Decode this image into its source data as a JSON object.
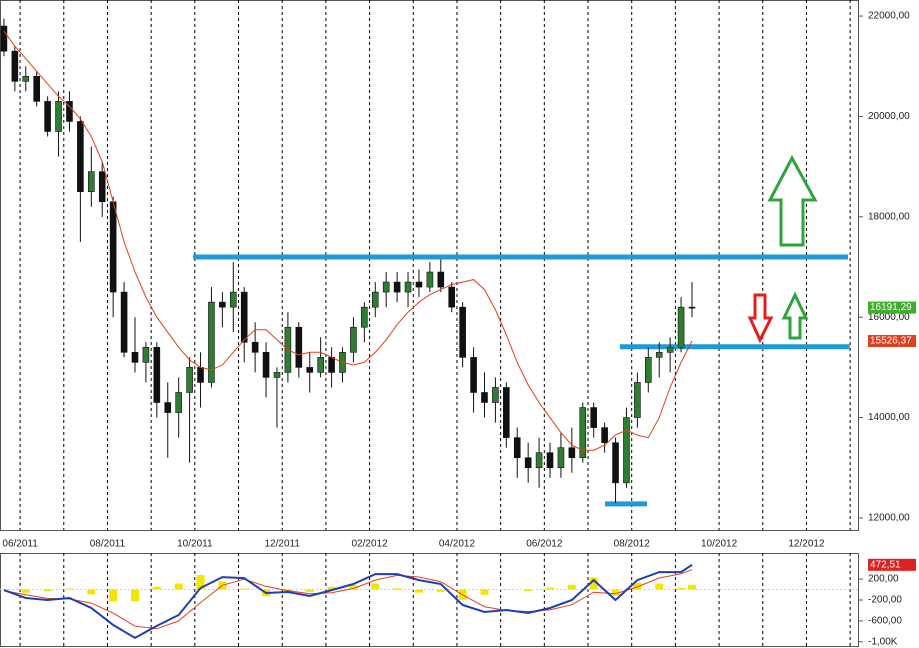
{
  "chart_data": {
    "type": "candlestick",
    "x": [
      -0.37,
      -0.12,
      0.13,
      0.38,
      0.63,
      0.88,
      1.13,
      1.38,
      1.63,
      1.88,
      2.13,
      2.38,
      2.63,
      2.88,
      3.13,
      3.38,
      3.63,
      3.88,
      4.13,
      4.38,
      4.63,
      4.88,
      5.13,
      5.38,
      5.63,
      5.88,
      6.13,
      6.38,
      6.63,
      6.88,
      7.13,
      7.38,
      7.63,
      7.88,
      8.13,
      8.38,
      8.63,
      8.88,
      9.13,
      9.38,
      9.63,
      9.88,
      10.13,
      10.38,
      10.63,
      10.88,
      11.13,
      11.38,
      11.63,
      11.88,
      12.13,
      12.38,
      12.63,
      12.88,
      13.13,
      13.38,
      13.63,
      13.88,
      14.13,
      14.38,
      14.63,
      14.88,
      15.13,
      15.38
    ],
    "open": [
      21800,
      21300,
      20700,
      20800,
      20300,
      19700,
      20300,
      19900,
      18500,
      18900,
      18300,
      16500,
      15300,
      15100,
      15400,
      14300,
      14100,
      14500,
      15000,
      14700,
      16300,
      16200,
      16500,
      15500,
      15300,
      14800,
      14900,
      15800,
      15000,
      14900,
      15200,
      14900,
      15300,
      15800,
      16200,
      16500,
      16700,
      16500,
      16700,
      16600,
      16900,
      16600,
      16200,
      15200,
      14500,
      14300,
      14600,
      13600,
      13200,
      13000,
      13300,
      13000,
      13400,
      13200,
      14200,
      13800,
      13500,
      12700,
      14000,
      14700,
      15200,
      15300,
      15400,
      16200
    ],
    "high": [
      21950,
      21400,
      21000,
      20900,
      20400,
      20500,
      20500,
      20000,
      19400,
      19100,
      18400,
      16700,
      16000,
      15500,
      15500,
      14700,
      14800,
      15200,
      15300,
      16600,
      16500,
      17100,
      16600,
      15900,
      15500,
      15000,
      16100,
      15900,
      15300,
      15600,
      15400,
      15400,
      16000,
      16300,
      16700,
      16900,
      16900,
      16900,
      16950,
      17100,
      17150,
      16700,
      16300,
      15400,
      14900,
      14800,
      14700,
      13800,
      13500,
      13600,
      13500,
      13700,
      13800,
      14300,
      14300,
      13900,
      13600,
      14200,
      14900,
      15400,
      15500,
      15600,
      16400,
      16700
    ],
    "low": [
      21200,
      20500,
      20500,
      20200,
      19600,
      19200,
      19700,
      17500,
      18200,
      18000,
      16000,
      15200,
      14900,
      14700,
      14000,
      13200,
      13600,
      13100,
      14200,
      14600,
      15800,
      15700,
      15100,
      14900,
      14400,
      13800,
      14700,
      14800,
      14500,
      14800,
      14600,
      14700,
      15100,
      15500,
      16000,
      16200,
      16300,
      16200,
      16400,
      16500,
      16500,
      16100,
      15000,
      14100,
      14000,
      13900,
      13400,
      12800,
      12700,
      12600,
      12800,
      12800,
      12900,
      13100,
      13600,
      13300,
      12300,
      12600,
      13800,
      14500,
      14800,
      14900,
      15300,
      16000
    ],
    "close": [
      21300,
      20700,
      20800,
      20300,
      19700,
      20300,
      19900,
      18500,
      18900,
      18300,
      16500,
      15300,
      15100,
      15400,
      14300,
      14100,
      14500,
      15000,
      14700,
      16300,
      16200,
      16500,
      15500,
      15300,
      14800,
      14900,
      15800,
      15000,
      14900,
      15200,
      14900,
      15300,
      15800,
      16200,
      16500,
      16700,
      16500,
      16700,
      16600,
      16900,
      16600,
      16200,
      15200,
      14500,
      14300,
      14600,
      13600,
      13200,
      13000,
      13300,
      13000,
      13400,
      13200,
      14200,
      13800,
      13500,
      12700,
      14000,
      14700,
      15200,
      15300,
      15400,
      16200,
      16191.29
    ],
    "up_color": "#2e7d32",
    "down_color": "#111111",
    "ma": {
      "color": "#e0401e",
      "values": [
        21700,
        21400,
        21150,
        20900,
        20650,
        20400,
        20200,
        19950,
        19600,
        19100,
        18300,
        17500,
        16900,
        16400,
        16000,
        15700,
        15400,
        15150,
        15000,
        14950,
        15050,
        15300,
        15550,
        15750,
        15750,
        15550,
        15350,
        15250,
        15300,
        15300,
        15200,
        15100,
        15050,
        15100,
        15300,
        15550,
        15850,
        16100,
        16300,
        16450,
        16550,
        16650,
        16700,
        16750,
        16550,
        16150,
        15650,
        15100,
        14650,
        14300,
        14000,
        13700,
        13450,
        13350,
        13350,
        13450,
        13650,
        13750,
        13650,
        13600,
        14000,
        14600,
        15100,
        15526.37
      ]
    },
    "xlim": [
      -0.46,
      19.18
    ],
    "xticks": [
      {
        "value": 0,
        "label": "06/2011"
      },
      {
        "value": 2,
        "label": "08/2011"
      },
      {
        "value": 4,
        "label": "10/2011"
      },
      {
        "value": 6,
        "label": "12/2011"
      },
      {
        "value": 8,
        "label": "02/2012"
      },
      {
        "value": 10,
        "label": "04/2012"
      },
      {
        "value": 12,
        "label": "06/2012"
      },
      {
        "value": 14,
        "label": "08/2012"
      },
      {
        "value": 16,
        "label": "10/2012"
      },
      {
        "value": 18,
        "label": "12/2012"
      }
    ],
    "xgrid": [
      1,
      3,
      5,
      7,
      9,
      11,
      13,
      15,
      17,
      19
    ],
    "ylim": [
      11760,
      22320
    ],
    "yticks": [
      {
        "value": 22000,
        "label": "22000,00"
      },
      {
        "value": 20000,
        "label": "20000,00"
      },
      {
        "value": 18000,
        "label": "18000,00"
      },
      {
        "value": 16000,
        "label": "16000,00"
      },
      {
        "value": 14000,
        "label": "14000,00"
      },
      {
        "value": 12000,
        "label": "12000,00"
      }
    ],
    "ytags": [
      {
        "value": 16191.29,
        "label": "16191,29",
        "color": "#3fae2a"
      },
      {
        "value": 15526.37,
        "label": "15526,37",
        "color": "#e0401e"
      }
    ],
    "level_color": "#1e9bd7",
    "levels": [
      {
        "value": 17200,
        "x": [
          3.96,
          18.95
        ]
      },
      {
        "value": 15410,
        "x": [
          13.73,
          18.99
        ]
      },
      {
        "value": 12280,
        "x": [
          13.39,
          14.35
        ]
      }
    ],
    "macd": {
      "x": [
        -0.37,
        0.13,
        0.63,
        1.13,
        1.63,
        2.13,
        2.63,
        3.13,
        3.63,
        4.13,
        4.63,
        5.13,
        5.63,
        6.13,
        6.63,
        7.13,
        7.63,
        8.13,
        8.63,
        9.13,
        9.63,
        10.13,
        10.63,
        11.13,
        11.63,
        12.13,
        12.63,
        13.13,
        13.63,
        14.13,
        14.63,
        15.13,
        15.38
      ],
      "line": {
        "color": "#1f3fb0",
        "values": [
          -10,
          -162,
          -200,
          -162,
          -352,
          -676,
          -924,
          -695,
          -486,
          29,
          238,
          219,
          -67,
          -48,
          -124,
          -10,
          105,
          295,
          295,
          181,
          105,
          -295,
          -429,
          -391,
          -448,
          -352,
          -200,
          181,
          -200,
          181,
          333,
          333,
          472.51
        ]
      },
      "signal": {
        "color": "#e0401e",
        "values": [
          -20,
          -100,
          -170,
          -180,
          -260,
          -450,
          -700,
          -750,
          -600,
          -250,
          80,
          200,
          60,
          -20,
          -80,
          -60,
          20,
          180,
          270,
          240,
          150,
          -100,
          -330,
          -400,
          -420,
          -390,
          -290,
          -50,
          -80,
          50,
          220,
          300,
          380
        ]
      },
      "histogram": {
        "color": "#f2e600",
        "values": [
          10,
          -62,
          -30,
          18,
          -92,
          -226,
          -224,
          55,
          114,
          279,
          158,
          19,
          -127,
          -28,
          -44,
          50,
          85,
          115,
          25,
          -59,
          -45,
          -195,
          -99,
          9,
          -28,
          38,
          90,
          231,
          -120,
          131,
          113,
          33,
          92
        ]
      },
      "ylim": [
        -1060,
        660
      ],
      "yticks": [
        {
          "value": 200,
          "label": "200,00"
        },
        {
          "value": -200,
          "label": "-200,00"
        },
        {
          "value": -600,
          "label": "-600,00"
        },
        {
          "value": -1000,
          "label": "-1,00K"
        }
      ],
      "ytags": [
        {
          "value": 472.51,
          "label": "472,51",
          "color": "#dd2222"
        }
      ]
    }
  }
}
